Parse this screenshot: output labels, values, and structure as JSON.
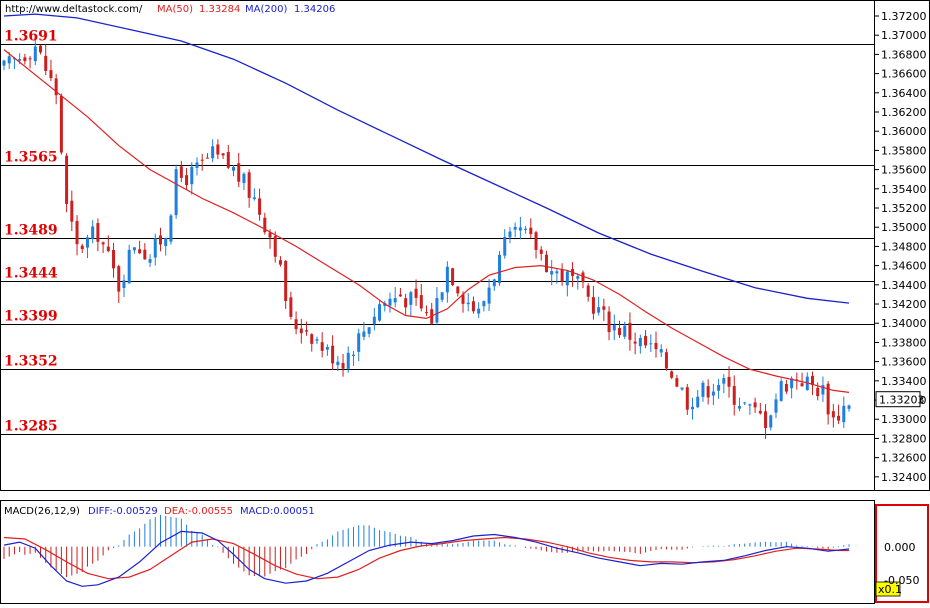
{
  "header": {
    "url": "http://www.deltastock.com/",
    "ma50_label": "MA(50)",
    "ma50_value": "1.33284",
    "ma200_label": "MA(200)",
    "ma200_value": "1.34206"
  },
  "macd_header": {
    "title": "MACD(26,12,9)",
    "diff": "DIFF:-0.00529",
    "dea": "DEA:-0.00555",
    "macd": "MACD:0.00051"
  },
  "price_axis": {
    "ticks": [
      "1.37200",
      "1.37000",
      "1.36800",
      "1.36600",
      "1.36400",
      "1.36200",
      "1.36000",
      "1.35800",
      "1.35600",
      "1.35400",
      "1.35200",
      "1.35000",
      "1.34800",
      "1.34600",
      "1.34400",
      "1.34200",
      "1.34000",
      "1.33800",
      "1.33600",
      "1.33400",
      "1.33200",
      "1.33000",
      "1.32800",
      "1.32600",
      "1.32400"
    ],
    "current_price": "1.33203"
  },
  "macd_axis": {
    "ticks": [
      "0.000",
      "-0.050"
    ],
    "scale_badge": "x0.1"
  },
  "colors": {
    "bull": "#1f7fe0",
    "bear": "#cc1f1f",
    "ma50": "#e02020",
    "ma200": "#1a22cc",
    "level_label": "#e00000",
    "panel_frame": "#e00000",
    "badge_bg": "#ffff00"
  },
  "chart_data": {
    "type": "candlestick",
    "ylim": [
      1.323,
      1.373
    ],
    "levels": [
      {
        "value": 1.3691,
        "label": "1.3691"
      },
      {
        "value": 1.3565,
        "label": "1.3565"
      },
      {
        "value": 1.3489,
        "label": "1.3489"
      },
      {
        "value": 1.3444,
        "label": "1.3444"
      },
      {
        "value": 1.3399,
        "label": "1.3399"
      },
      {
        "value": 1.3352,
        "label": "1.3352"
      },
      {
        "value": 1.3285,
        "label": "1.3285"
      }
    ],
    "close_path": [
      [
        0,
        1.3665
      ],
      [
        6,
        1.369
      ],
      [
        10,
        1.364
      ],
      [
        12,
        1.352
      ],
      [
        14,
        1.3478
      ],
      [
        18,
        1.3495
      ],
      [
        22,
        1.344
      ],
      [
        25,
        1.3485
      ],
      [
        28,
        1.347
      ],
      [
        31,
        1.3495
      ],
      [
        33,
        1.355
      ],
      [
        36,
        1.3555
      ],
      [
        40,
        1.3575
      ],
      [
        44,
        1.356
      ],
      [
        48,
        1.353
      ],
      [
        52,
        1.348
      ],
      [
        55,
        1.34
      ],
      [
        58,
        1.3395
      ],
      [
        62,
        1.337
      ],
      [
        65,
        1.3362
      ],
      [
        68,
        1.3385
      ],
      [
        72,
        1.342
      ],
      [
        76,
        1.343
      ],
      [
        79,
        1.342
      ],
      [
        82,
        1.3405
      ],
      [
        85,
        1.346
      ],
      [
        88,
        1.343
      ],
      [
        91,
        1.341
      ],
      [
        93,
        1.344
      ],
      [
        96,
        1.348
      ],
      [
        99,
        1.3495
      ],
      [
        102,
        1.348
      ],
      [
        105,
        1.3455
      ],
      [
        109,
        1.3445
      ],
      [
        113,
        1.342
      ],
      [
        116,
        1.34
      ],
      [
        119,
        1.3392
      ],
      [
        122,
        1.338
      ],
      [
        125,
        1.337
      ],
      [
        128,
        1.335
      ],
      [
        131,
        1.332
      ],
      [
        134,
        1.333
      ],
      [
        137,
        1.334
      ],
      [
        140,
        1.3325
      ],
      [
        143,
        1.331
      ],
      [
        146,
        1.33
      ],
      [
        149,
        1.3335
      ],
      [
        152,
        1.3345
      ],
      [
        155,
        1.3335
      ],
      [
        157,
        1.333
      ],
      [
        159,
        1.33
      ],
      [
        162,
        1.332
      ]
    ],
    "ma50_path": [
      [
        0,
        1.3685
      ],
      [
        8,
        1.365
      ],
      [
        16,
        1.3615
      ],
      [
        22,
        1.3585
      ],
      [
        28,
        1.356
      ],
      [
        33,
        1.3545
      ],
      [
        38,
        1.353
      ],
      [
        44,
        1.3515
      ],
      [
        50,
        1.3498
      ],
      [
        56,
        1.348
      ],
      [
        62,
        1.346
      ],
      [
        68,
        1.344
      ],
      [
        73,
        1.342
      ],
      [
        77,
        1.3408
      ],
      [
        81,
        1.3405
      ],
      [
        85,
        1.3415
      ],
      [
        89,
        1.3435
      ],
      [
        93,
        1.345
      ],
      [
        98,
        1.3458
      ],
      [
        103,
        1.346
      ],
      [
        108,
        1.3455
      ],
      [
        113,
        1.3445
      ],
      [
        118,
        1.343
      ],
      [
        123,
        1.3412
      ],
      [
        128,
        1.3395
      ],
      [
        133,
        1.338
      ],
      [
        138,
        1.3365
      ],
      [
        143,
        1.3352
      ],
      [
        148,
        1.3345
      ],
      [
        154,
        1.3338
      ],
      [
        159,
        1.333
      ],
      [
        162,
        1.3328
      ]
    ],
    "ma200_path": [
      [
        0,
        1.372
      ],
      [
        6,
        1.3722
      ],
      [
        14,
        1.3718
      ],
      [
        24,
        1.3706
      ],
      [
        34,
        1.3694
      ],
      [
        44,
        1.3675
      ],
      [
        54,
        1.365
      ],
      [
        64,
        1.3622
      ],
      [
        74,
        1.3596
      ],
      [
        84,
        1.357
      ],
      [
        94,
        1.3545
      ],
      [
        104,
        1.352
      ],
      [
        114,
        1.3494
      ],
      [
        124,
        1.3472
      ],
      [
        134,
        1.3454
      ],
      [
        144,
        1.3437
      ],
      [
        154,
        1.3426
      ],
      [
        162,
        1.3421
      ]
    ],
    "macd": {
      "ylim": [
        -0.007,
        0.0035
      ],
      "diff_path": [
        [
          0,
          0.0002
        ],
        [
          3,
          0.0006
        ],
        [
          6,
          -0.0002
        ],
        [
          9,
          -0.0025
        ],
        [
          12,
          -0.0045
        ],
        [
          15,
          -0.0052
        ],
        [
          18,
          -0.005
        ],
        [
          22,
          -0.004
        ],
        [
          26,
          -0.002
        ],
        [
          30,
          0.0005
        ],
        [
          34,
          0.002
        ],
        [
          38,
          0.0018
        ],
        [
          41,
          0.0008
        ],
        [
          44,
          -0.001
        ],
        [
          47,
          -0.003
        ],
        [
          50,
          -0.0042
        ],
        [
          54,
          -0.0048
        ],
        [
          58,
          -0.0045
        ],
        [
          62,
          -0.0035
        ],
        [
          66,
          -0.002
        ],
        [
          70,
          -0.0005
        ],
        [
          74,
          0.0002
        ],
        [
          78,
          0.0006
        ],
        [
          82,
          0.0004
        ],
        [
          86,
          0.0008
        ],
        [
          90,
          0.0014
        ],
        [
          94,
          0.0016
        ],
        [
          98,
          0.0012
        ],
        [
          102,
          0.0006
        ],
        [
          106,
          -0.0002
        ],
        [
          110,
          -0.0008
        ],
        [
          114,
          -0.0015
        ],
        [
          118,
          -0.002
        ],
        [
          122,
          -0.0025
        ],
        [
          126,
          -0.0022
        ],
        [
          130,
          -0.0023
        ],
        [
          134,
          -0.002
        ],
        [
          138,
          -0.0018
        ],
        [
          142,
          -0.0012
        ],
        [
          146,
          -0.0005
        ],
        [
          150,
          0.0
        ],
        [
          154,
          -0.0002
        ],
        [
          158,
          -0.0006
        ],
        [
          162,
          -0.0003
        ]
      ],
      "dea_path": [
        [
          0,
          0.0012
        ],
        [
          4,
          0.001
        ],
        [
          8,
          -0.0004
        ],
        [
          12,
          -0.002
        ],
        [
          16,
          -0.0035
        ],
        [
          20,
          -0.0042
        ],
        [
          24,
          -0.004
        ],
        [
          28,
          -0.003
        ],
        [
          32,
          -0.0012
        ],
        [
          36,
          0.0006
        ],
        [
          40,
          0.001
        ],
        [
          44,
          0.0004
        ],
        [
          48,
          -0.001
        ],
        [
          52,
          -0.0025
        ],
        [
          56,
          -0.0036
        ],
        [
          60,
          -0.0042
        ],
        [
          64,
          -0.004
        ],
        [
          68,
          -0.003
        ],
        [
          72,
          -0.0015
        ],
        [
          76,
          -0.0005
        ],
        [
          80,
          0.0001
        ],
        [
          84,
          0.0004
        ],
        [
          88,
          0.0008
        ],
        [
          92,
          0.001
        ],
        [
          96,
          0.0012
        ],
        [
          100,
          0.001
        ],
        [
          104,
          0.0006
        ],
        [
          108,
          0.0
        ],
        [
          112,
          -0.0008
        ],
        [
          116,
          -0.0014
        ],
        [
          120,
          -0.0018
        ],
        [
          124,
          -0.002
        ],
        [
          128,
          -0.002
        ],
        [
          132,
          -0.0021
        ],
        [
          136,
          -0.002
        ],
        [
          140,
          -0.0017
        ],
        [
          144,
          -0.0012
        ],
        [
          148,
          -0.0006
        ],
        [
          152,
          -0.0002
        ],
        [
          156,
          -0.0003
        ],
        [
          160,
          -0.0005
        ],
        [
          162,
          -0.0005
        ]
      ]
    }
  }
}
